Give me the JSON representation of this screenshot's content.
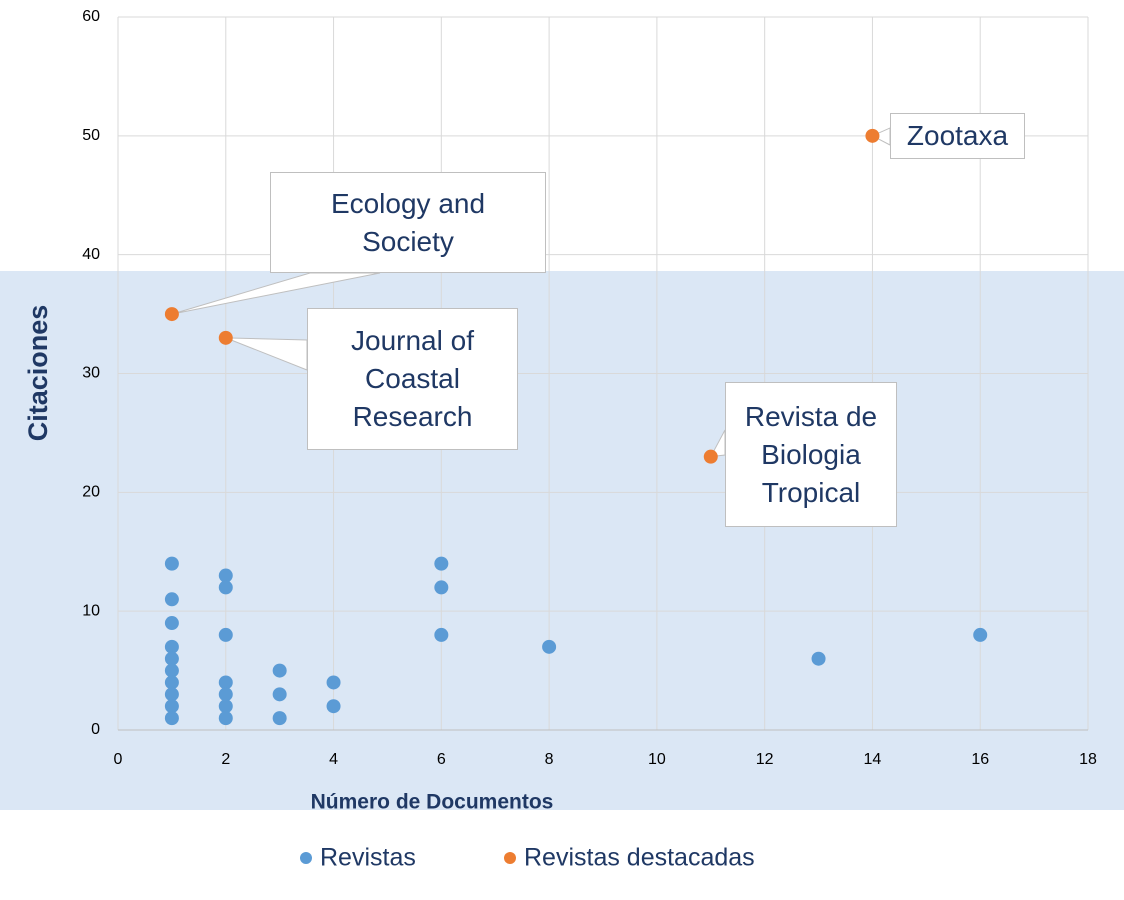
{
  "chart_data": {
    "type": "scatter",
    "xlabel": "Número de Documentos",
    "ylabel": "Citaciones",
    "xlim": [
      0,
      18
    ],
    "xticks": [
      0,
      2,
      4,
      6,
      8,
      10,
      12,
      14,
      16,
      18
    ],
    "ylim": [
      0,
      60
    ],
    "yticks": [
      0,
      10,
      20,
      30,
      40,
      50,
      60
    ],
    "grid": true,
    "legend": "bottom",
    "series": [
      {
        "name": "Revistas",
        "color": "#5b9bd5",
        "x": [
          1,
          1,
          1,
          1,
          1,
          1,
          1,
          1,
          1,
          1,
          2,
          2,
          2,
          2,
          2,
          2,
          2,
          3,
          3,
          3,
          4,
          4,
          6,
          6,
          6,
          8,
          13,
          16
        ],
        "values": [
          14,
          11,
          9,
          7,
          6,
          5,
          4,
          3,
          2,
          1,
          13,
          12,
          8,
          4,
          3,
          2,
          1,
          5,
          3,
          1,
          4,
          2,
          14,
          12,
          8,
          7,
          6,
          8
        ]
      },
      {
        "name": "Revistas destacadas",
        "color": "#ed7d31",
        "x": [
          1,
          2,
          11,
          14
        ],
        "values": [
          35,
          33,
          23,
          50
        ],
        "labels": [
          "Ecology and Society",
          "Journal of Coastal Research",
          "Revista de Biologia Tropical",
          "Zootaxa"
        ]
      }
    ]
  }
}
